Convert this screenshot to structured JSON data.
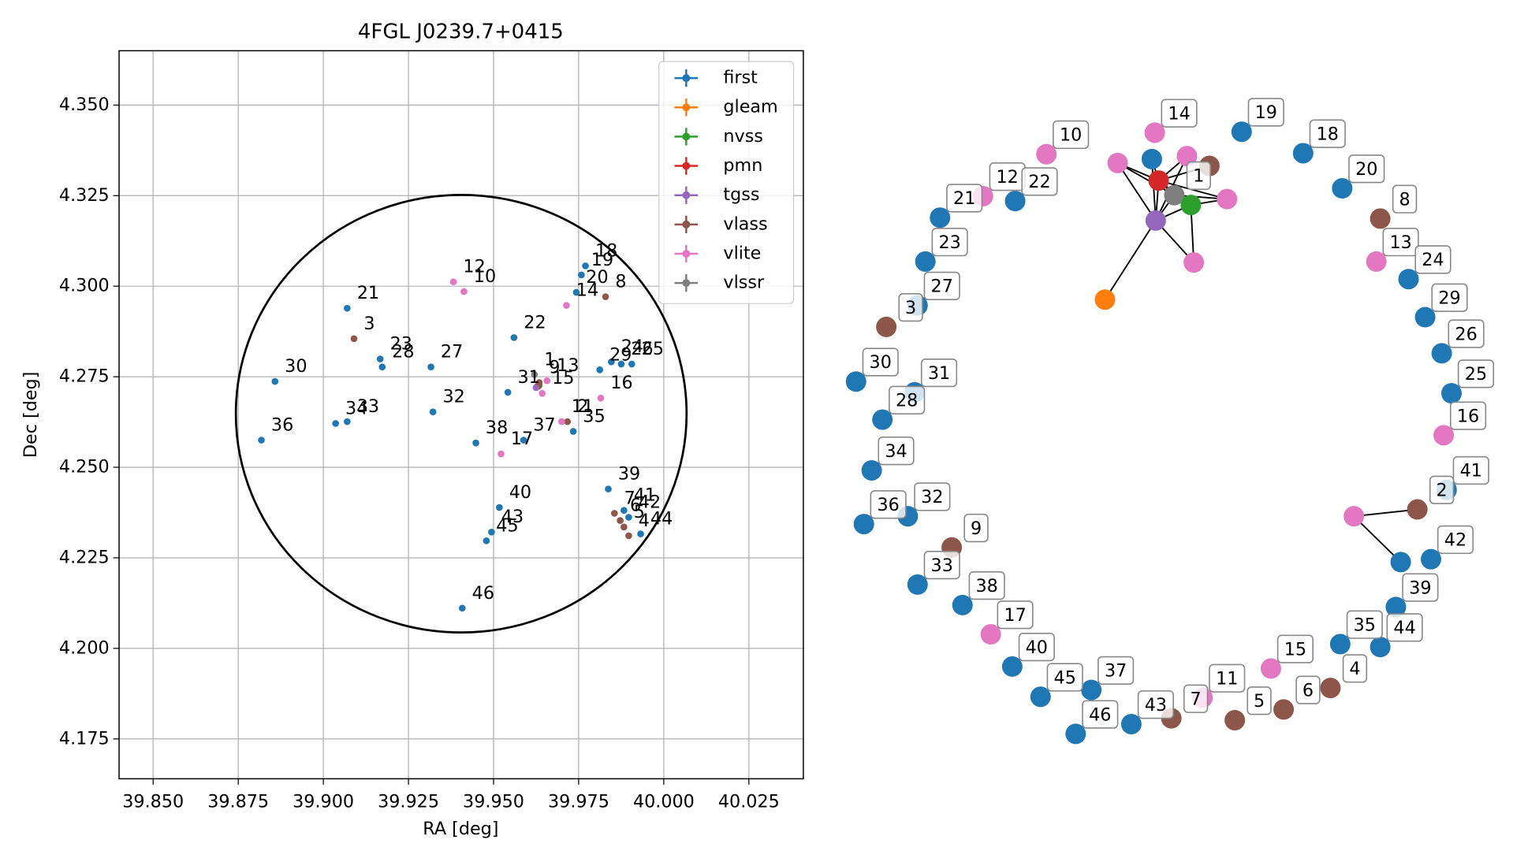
{
  "chart_data": [
    {
      "type": "scatter",
      "title": "4FGL J0239.7+0415",
      "x_label": "RA [deg]",
      "y_label": "Dec [deg]",
      "xlim": [
        39.84,
        40.041
      ],
      "ylim": [
        4.164,
        4.365
      ],
      "xticks": [
        {
          "value": 39.85,
          "label": "39.850"
        },
        {
          "value": 39.875,
          "label": "39.875"
        },
        {
          "value": 39.9,
          "label": "39.900"
        },
        {
          "value": 39.925,
          "label": "39.925"
        },
        {
          "value": 39.95,
          "label": "39.950"
        },
        {
          "value": 39.975,
          "label": "39.975"
        },
        {
          "value": 40.0,
          "label": "40.000"
        },
        {
          "value": 40.025,
          "label": "40.025"
        }
      ],
      "yticks": [
        {
          "value": 4.175,
          "label": "4.175"
        },
        {
          "value": 4.2,
          "label": "4.200"
        },
        {
          "value": 4.225,
          "label": "4.225"
        },
        {
          "value": 4.25,
          "label": "4.250"
        },
        {
          "value": 4.275,
          "label": "4.275"
        },
        {
          "value": 4.3,
          "label": "4.300"
        },
        {
          "value": 4.325,
          "label": "4.325"
        },
        {
          "value": 4.35,
          "label": "4.350"
        }
      ],
      "grid": true,
      "legend": "upper right",
      "region": {
        "ra": 39.9405,
        "dec": 4.2648,
        "r_ra": 0.0662,
        "r_dec": 0.0604,
        "color": "#000000"
      },
      "series": [
        {
          "name": "first",
          "color": "#1f77b4",
          "labels": [
            "21",
            "30",
            "36",
            "23",
            "28",
            "27",
            "34",
            "33",
            "32",
            "22",
            "31",
            "38",
            "37",
            "18",
            "19",
            "20",
            "29",
            "24",
            "26",
            "25",
            "35",
            "39",
            "40",
            "43",
            "45",
            "46",
            "41",
            "42",
            "44"
          ],
          "x": [
            39.907,
            39.8858,
            39.8818,
            39.9167,
            39.9173,
            39.9316,
            39.9036,
            39.907,
            39.9322,
            39.956,
            39.9542,
            39.9448,
            39.9588,
            39.977,
            39.9758,
            39.9743,
            39.9812,
            39.9846,
            39.9875,
            39.9906,
            39.9734,
            39.9837,
            39.9517,
            39.9494,
            39.9479,
            39.9408,
            39.9883,
            39.9897,
            39.9932
          ],
          "values": [
            4.2939,
            4.2737,
            4.2575,
            4.2799,
            4.2777,
            4.2777,
            4.2621,
            4.2626,
            4.2653,
            4.2858,
            4.2707,
            4.2567,
            4.2575,
            4.3056,
            4.3031,
            4.2983,
            4.2769,
            4.2791,
            4.2785,
            4.2785,
            4.2599,
            4.244,
            4.2389,
            4.2321,
            4.2297,
            4.2111,
            4.2381,
            4.2362,
            4.2316
          ]
        },
        {
          "name": "gleam",
          "color": "#ff7f0e",
          "labels": [
            null
          ],
          "x": [
            39.9631
          ],
          "values": [
            4.2723
          ]
        },
        {
          "name": "nvss",
          "color": "#2ca02c",
          "labels": [
            null
          ],
          "x": [
            39.9634
          ],
          "values": [
            4.2726
          ]
        },
        {
          "name": "pmn",
          "color": "#d62728",
          "labels": [
            null
          ],
          "x": [
            39.9628
          ],
          "values": [
            4.2723
          ]
        },
        {
          "name": "tgss",
          "color": "#9467bd",
          "labels": [
            null
          ],
          "x": [
            39.9625
          ],
          "values": [
            4.272
          ]
        },
        {
          "name": "vlass",
          "color": "#8c564b",
          "labels": [
            "8",
            "3",
            "9",
            "2",
            "7",
            "6",
            "5",
            "4"
          ],
          "x": [
            39.9829,
            39.909,
            39.9634,
            39.9717,
            39.9855,
            39.9872,
            39.9883,
            39.9897
          ],
          "values": [
            4.2971,
            4.2855,
            4.2734,
            4.2626,
            4.2373,
            4.2353,
            4.2335,
            4.2311
          ]
        },
        {
          "name": "vlite",
          "color": "#e377c2",
          "labels": [
            "12",
            "10",
            "14",
            "16",
            "17",
            "11",
            "13",
            "15"
          ],
          "x": [
            39.9382,
            39.9413,
            39.9714,
            39.9815,
            39.9522,
            39.97,
            39.9657,
            39.9643
          ],
          "values": [
            4.3012,
            4.2985,
            4.2947,
            4.2691,
            4.2537,
            4.2626,
            4.2739,
            4.2704
          ]
        },
        {
          "name": "vlssr",
          "color": "#7f7f7f",
          "labels": [
            "1"
          ],
          "x": [
            39.962
          ],
          "values": [
            4.2756
          ]
        }
      ]
    },
    {
      "type": "network",
      "nodes": [
        {
          "label": "14",
          "color": "#e377c2"
        },
        {
          "label": "19",
          "color": "#1f77b4"
        },
        {
          "label": "10",
          "color": "#e377c2"
        },
        {
          "label": "18",
          "color": "#1f77b4"
        },
        {
          "label": "12",
          "color": "#e377c2"
        },
        {
          "label": "22",
          "color": "#1f77b4"
        },
        {
          "label": "21",
          "color": "#1f77b4"
        },
        {
          "label": "20",
          "color": "#1f77b4"
        },
        {
          "label": "8",
          "color": "#8c564b"
        },
        {
          "label": "23",
          "color": "#1f77b4"
        },
        {
          "label": "13",
          "color": "#e377c2"
        },
        {
          "label": "24",
          "color": "#1f77b4"
        },
        {
          "label": "27",
          "color": "#1f77b4"
        },
        {
          "label": "3",
          "color": "#8c564b"
        },
        {
          "label": "29",
          "color": "#1f77b4"
        },
        {
          "label": "26",
          "color": "#1f77b4"
        },
        {
          "label": "30",
          "color": "#1f77b4"
        },
        {
          "label": "31",
          "color": "#1f77b4"
        },
        {
          "label": "25",
          "color": "#1f77b4"
        },
        {
          "label": "28",
          "color": "#1f77b4"
        },
        {
          "label": "16",
          "color": "#e377c2"
        },
        {
          "label": "34",
          "color": "#1f77b4"
        },
        {
          "label": "41",
          "color": "#1f77b4"
        },
        {
          "label": "36",
          "color": "#1f77b4"
        },
        {
          "label": "32",
          "color": "#1f77b4"
        },
        {
          "label": "2",
          "color": "#8c564b"
        },
        {
          "label": "9",
          "color": "#8c564b"
        },
        {
          "label": "42",
          "color": "#1f77b4"
        },
        {
          "label": "33",
          "color": "#1f77b4"
        },
        {
          "label": "39",
          "color": "#1f77b4"
        },
        {
          "label": "38",
          "color": "#1f77b4"
        },
        {
          "label": "17",
          "color": "#e377c2"
        },
        {
          "label": "35",
          "color": "#1f77b4"
        },
        {
          "label": "44",
          "color": "#1f77b4"
        },
        {
          "label": "40",
          "color": "#1f77b4"
        },
        {
          "label": "15",
          "color": "#e377c2"
        },
        {
          "label": "4",
          "color": "#8c564b"
        },
        {
          "label": "37",
          "color": "#1f77b4"
        },
        {
          "label": "45",
          "color": "#1f77b4"
        },
        {
          "label": "11",
          "color": "#e377c2"
        },
        {
          "label": "7",
          "color": "#8c564b"
        },
        {
          "label": "5",
          "color": "#8c564b"
        },
        {
          "label": "6",
          "color": "#8c564b"
        },
        {
          "label": "43",
          "color": "#1f77b4"
        },
        {
          "label": "46",
          "color": "#1f77b4"
        },
        {
          "label": "1",
          "color": "#7f7f7f"
        },
        {
          "color": "#1f77b4"
        },
        {
          "color": "#e377c2"
        },
        {
          "color": "#8c564b"
        },
        {
          "color": "#e377c2"
        },
        {
          "color": "#d62728"
        },
        {
          "color": "#2ca02c"
        },
        {
          "color": "#e377c2"
        },
        {
          "color": "#9467bd"
        },
        {
          "color": "#e377c2"
        },
        {
          "color": "#ff7f0e"
        },
        {
          "color": "#e377c2"
        },
        {
          "color": "#1f77b4"
        }
      ]
    }
  ]
}
